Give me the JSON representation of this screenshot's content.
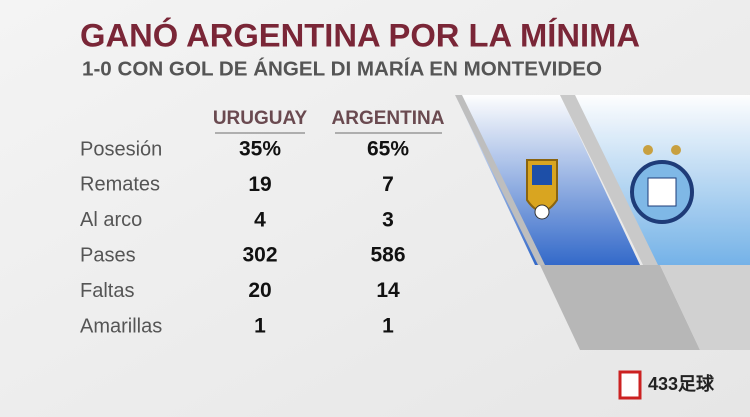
{
  "header": {
    "title": "GANÓ ARGENTINA POR LA MÍNIMA",
    "subtitle": "1-0 CON GOL DE ÁNGEL DI MARÍA EN MONTEVIDEO"
  },
  "table": {
    "columns": [
      "URUGUAY",
      "ARGENTINA"
    ],
    "rows": [
      [
        "Posesión",
        "35%",
        "65%"
      ],
      [
        "Remates",
        "19",
        "7"
      ],
      [
        "Al arco",
        "4",
        "3"
      ],
      [
        "Pases",
        "302",
        "586"
      ],
      [
        "Faltas",
        "20",
        "14"
      ],
      [
        "Amarillas",
        "1",
        "1"
      ]
    ]
  },
  "watermark": {
    "text": "433足球"
  }
}
